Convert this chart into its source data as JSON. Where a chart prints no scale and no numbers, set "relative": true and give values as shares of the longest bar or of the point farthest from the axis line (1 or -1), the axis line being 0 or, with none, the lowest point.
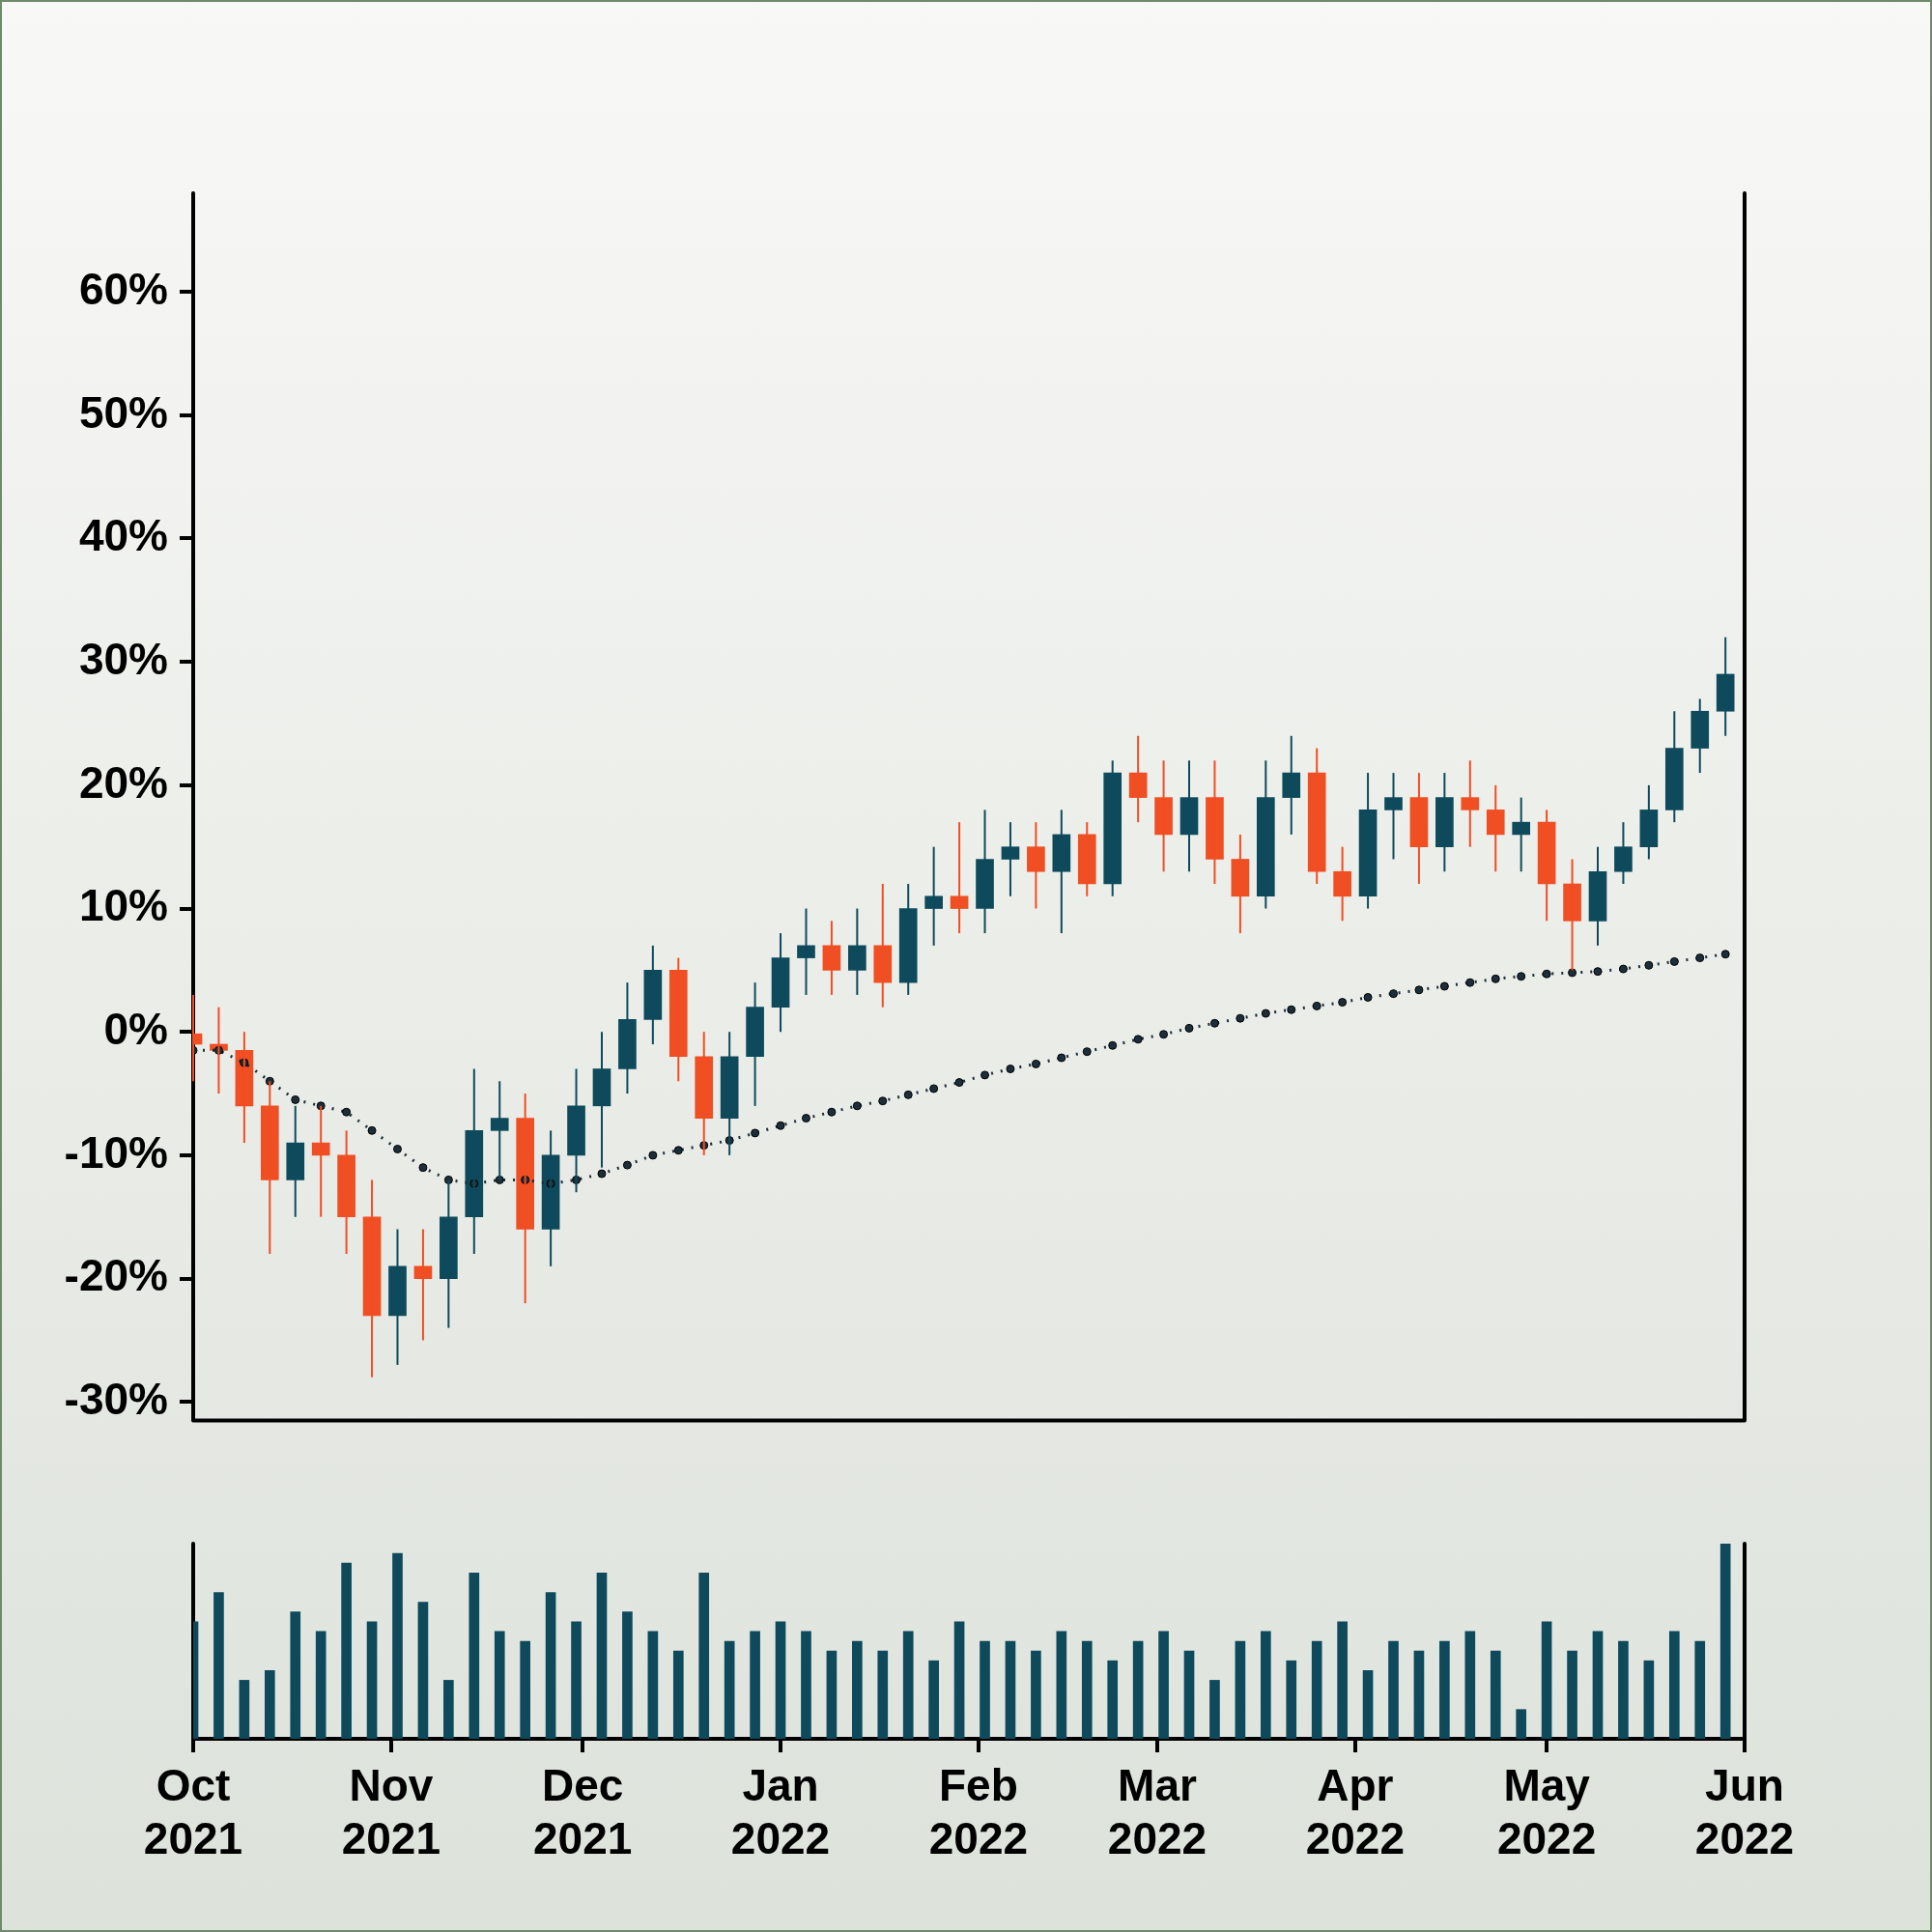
{
  "chart_data": [
    {
      "type": "candlestick",
      "x": [
        "2021-10-01",
        "2021-10-05",
        "2021-10-09",
        "2021-10-13",
        "2021-10-17",
        "2021-10-21",
        "2021-10-25",
        "2021-10-29",
        "2021-11-02",
        "2021-11-06",
        "2021-11-10",
        "2021-11-14",
        "2021-11-18",
        "2021-11-22",
        "2021-11-26",
        "2021-11-30",
        "2021-12-04",
        "2021-12-08",
        "2021-12-12",
        "2021-12-16",
        "2021-12-20",
        "2021-12-24",
        "2021-12-28",
        "2022-01-01",
        "2022-01-05",
        "2022-01-09",
        "2022-01-13",
        "2022-01-17",
        "2022-01-21",
        "2022-01-25",
        "2022-01-29",
        "2022-02-02",
        "2022-02-06",
        "2022-02-10",
        "2022-02-14",
        "2022-02-18",
        "2022-02-22",
        "2022-02-26",
        "2022-03-02",
        "2022-03-06",
        "2022-03-10",
        "2022-03-14",
        "2022-03-18",
        "2022-03-22",
        "2022-03-26",
        "2022-03-30",
        "2022-04-03",
        "2022-04-07",
        "2022-04-11",
        "2022-04-15",
        "2022-04-19",
        "2022-04-23",
        "2022-04-27",
        "2022-05-01",
        "2022-05-05",
        "2022-05-09",
        "2022-05-13",
        "2022-05-17",
        "2022-05-21",
        "2022-05-25",
        "2022-05-29"
      ],
      "series": [
        {
          "type": "candlestick",
          "ohlc": [
            [
              0,
              3,
              -4,
              -1
            ],
            [
              -1,
              2,
              -5,
              -1.5
            ],
            [
              -1.5,
              0,
              -9,
              -6
            ],
            [
              -6,
              -4,
              -18,
              -12
            ],
            [
              -12,
              -6,
              -15,
              -9
            ],
            [
              -9,
              -6,
              -15,
              -10
            ],
            [
              -10,
              -8,
              -18,
              -15
            ],
            [
              -15,
              -12,
              -28,
              -23
            ],
            [
              -23,
              -16,
              -27,
              -19
            ],
            [
              -19,
              -16,
              -25,
              -20
            ],
            [
              -20,
              -12,
              -24,
              -15
            ],
            [
              -15,
              -3,
              -18,
              -8
            ],
            [
              -8,
              -4,
              -12,
              -7
            ],
            [
              -7,
              -5,
              -22,
              -16
            ],
            [
              -16,
              -8,
              -19,
              -10
            ],
            [
              -10,
              -3,
              -13,
              -6
            ],
            [
              -6,
              0,
              -11,
              -3
            ],
            [
              -3,
              4,
              -5,
              1
            ],
            [
              1,
              7,
              -1,
              5
            ],
            [
              5,
              6,
              -4,
              -2
            ],
            [
              -2,
              0,
              -10,
              -7
            ],
            [
              -7,
              0,
              -10,
              -2
            ],
            [
              -2,
              4,
              -6,
              2
            ],
            [
              2,
              8,
              0,
              6
            ],
            [
              6,
              10,
              3,
              7
            ],
            [
              7,
              9,
              3,
              5
            ],
            [
              5,
              10,
              3,
              7
            ],
            [
              7,
              12,
              2,
              4
            ],
            [
              4,
              12,
              3,
              10
            ],
            [
              10,
              15,
              7,
              11
            ],
            [
              11,
              17,
              8,
              10
            ],
            [
              10,
              18,
              8,
              14
            ],
            [
              14,
              17,
              11,
              15
            ],
            [
              15,
              17,
              10,
              13
            ],
            [
              13,
              18,
              8,
              16
            ],
            [
              16,
              17,
              11,
              12
            ],
            [
              12,
              22,
              11,
              21
            ],
            [
              21,
              24,
              17,
              19
            ],
            [
              19,
              22,
              13,
              16
            ],
            [
              16,
              22,
              13,
              19
            ],
            [
              19,
              22,
              12,
              14
            ],
            [
              14,
              16,
              8,
              11
            ],
            [
              11,
              22,
              10,
              19
            ],
            [
              19,
              24,
              16,
              21
            ],
            [
              21,
              23,
              12,
              13
            ],
            [
              13,
              15,
              9,
              11
            ],
            [
              11,
              21,
              10,
              18
            ],
            [
              18,
              21,
              14,
              19
            ],
            [
              19,
              21,
              12,
              15
            ],
            [
              15,
              21,
              13,
              19
            ],
            [
              19,
              22,
              15,
              18
            ],
            [
              18,
              20,
              13,
              16
            ],
            [
              16,
              19,
              13,
              17
            ],
            [
              17,
              18,
              9,
              12
            ],
            [
              12,
              14,
              5,
              9
            ],
            [
              9,
              15,
              7,
              13
            ],
            [
              13,
              17,
              12,
              15
            ],
            [
              15,
              20,
              14,
              18
            ],
            [
              18,
              26,
              17,
              23
            ],
            [
              23,
              27,
              21,
              26
            ],
            [
              26,
              32,
              24,
              29
            ]
          ],
          "colors": [
            "#f04e23",
            "#f04e23",
            "#f04e23",
            "#f04e23",
            "#0e4a5c",
            "#f04e23",
            "#f04e23",
            "#f04e23",
            "#0e4a5c",
            "#f04e23",
            "#0e4a5c",
            "#0e4a5c",
            "#0e4a5c",
            "#f04e23",
            "#0e4a5c",
            "#0e4a5c",
            "#0e4a5c",
            "#0e4a5c",
            "#0e4a5c",
            "#f04e23",
            "#f04e23",
            "#0e4a5c",
            "#0e4a5c",
            "#0e4a5c",
            "#0e4a5c",
            "#f04e23",
            "#0e4a5c",
            "#f04e23",
            "#0e4a5c",
            "#0e4a5c",
            "#f04e23",
            "#0e4a5c",
            "#0e4a5c",
            "#f04e23",
            "#0e4a5c",
            "#f04e23",
            "#0e4a5c",
            "#f04e23",
            "#f04e23",
            "#0e4a5c",
            "#f04e23",
            "#f04e23",
            "#0e4a5c",
            "#0e4a5c",
            "#f04e23",
            "#f04e23",
            "#0e4a5c",
            "#0e4a5c",
            "#f04e23",
            "#0e4a5c",
            "#f04e23",
            "#f04e23",
            "#0e4a5c",
            "#f04e23",
            "#f04e23",
            "#0e4a5c",
            "#0e4a5c",
            "#0e4a5c",
            "#0e4a5c",
            "#0e4a5c",
            "#0e4a5c"
          ]
        },
        {
          "type": "line",
          "color": "#1c2e3a",
          "marker": "circle",
          "line_style": "dotted",
          "values": [
            -1.5,
            -1.5,
            -2.5,
            -4,
            -5.5,
            -6,
            -6.5,
            -8,
            -9.5,
            -11,
            -12,
            -12.3,
            -12,
            -12,
            -12.3,
            -12,
            -11.5,
            -10.8,
            -10,
            -9.6,
            -9.2,
            -8.8,
            -8.2,
            -7.6,
            -7,
            -6.5,
            -6,
            -5.6,
            -5.1,
            -4.6,
            -4.1,
            -3.5,
            -3,
            -2.6,
            -2.1,
            -1.6,
            -1.1,
            -0.6,
            -0.2,
            0.3,
            0.7,
            1.1,
            1.5,
            1.8,
            2.1,
            2.4,
            2.8,
            3.1,
            3.4,
            3.7,
            4,
            4.3,
            4.5,
            4.7,
            4.8,
            4.9,
            5.1,
            5.4,
            5.7,
            6,
            6.3
          ]
        }
      ],
      "xlim": [
        "2021-10-01",
        "2022-06-01"
      ],
      "ylim": [
        -31.5,
        68
      ],
      "yticks": [
        {
          "value": -30,
          "label": "-30%"
        },
        {
          "value": -20,
          "label": "-20%"
        },
        {
          "value": -10,
          "label": "-10%"
        },
        {
          "value": 0,
          "label": "0%"
        },
        {
          "value": 10,
          "label": "10%"
        },
        {
          "value": 20,
          "label": "20%"
        },
        {
          "value": 30,
          "label": "30%"
        },
        {
          "value": 40,
          "label": "40%"
        },
        {
          "value": 50,
          "label": "50%"
        },
        {
          "value": 60,
          "label": "60%"
        }
      ],
      "tick_labels": "y"
    },
    {
      "type": "bar",
      "relative": true,
      "color": "#0e4a5c",
      "x": [
        "2021-10-01",
        "2021-10-05",
        "2021-10-09",
        "2021-10-13",
        "2021-10-17",
        "2021-10-21",
        "2021-10-25",
        "2021-10-29",
        "2021-11-02",
        "2021-11-06",
        "2021-11-10",
        "2021-11-14",
        "2021-11-18",
        "2021-11-22",
        "2021-11-26",
        "2021-11-30",
        "2021-12-04",
        "2021-12-08",
        "2021-12-12",
        "2021-12-16",
        "2021-12-20",
        "2021-12-24",
        "2021-12-28",
        "2022-01-01",
        "2022-01-05",
        "2022-01-09",
        "2022-01-13",
        "2022-01-17",
        "2022-01-21",
        "2022-01-25",
        "2022-01-29",
        "2022-02-02",
        "2022-02-06",
        "2022-02-10",
        "2022-02-14",
        "2022-02-18",
        "2022-02-22",
        "2022-02-26",
        "2022-03-02",
        "2022-03-06",
        "2022-03-10",
        "2022-03-14",
        "2022-03-18",
        "2022-03-22",
        "2022-03-26",
        "2022-03-30",
        "2022-04-03",
        "2022-04-07",
        "2022-04-11",
        "2022-04-15",
        "2022-04-19",
        "2022-04-23",
        "2022-04-27",
        "2022-05-01",
        "2022-05-05",
        "2022-05-09",
        "2022-05-13",
        "2022-05-17",
        "2022-05-21",
        "2022-05-25",
        "2022-05-29"
      ],
      "values": [
        0.6,
        0.75,
        0.3,
        0.35,
        0.65,
        0.55,
        0.9,
        0.6,
        0.95,
        0.7,
        0.3,
        0.85,
        0.55,
        0.5,
        0.75,
        0.6,
        0.85,
        0.65,
        0.55,
        0.45,
        0.85,
        0.5,
        0.55,
        0.6,
        0.55,
        0.45,
        0.5,
        0.45,
        0.55,
        0.4,
        0.6,
        0.5,
        0.5,
        0.45,
        0.55,
        0.5,
        0.4,
        0.5,
        0.55,
        0.45,
        0.3,
        0.5,
        0.55,
        0.4,
        0.5,
        0.6,
        0.35,
        0.5,
        0.45,
        0.5,
        0.55,
        0.45,
        0.15,
        0.6,
        0.45,
        0.55,
        0.5,
        0.4,
        0.55,
        0.5,
        1
      ],
      "xlim": [
        "2021-10-01",
        "2022-06-01"
      ],
      "xticks": [
        {
          "value": "2021-10-01",
          "label": "Oct 2021"
        },
        {
          "value": "2021-11-01",
          "label": "Nov 2021"
        },
        {
          "value": "2021-12-01",
          "label": "Dec 2021"
        },
        {
          "value": "2022-01-01",
          "label": "Jan 2022"
        },
        {
          "value": "2022-02-01",
          "label": "Feb 2022"
        },
        {
          "value": "2022-03-01",
          "label": "Mar 2022"
        },
        {
          "value": "2022-04-01",
          "label": "Apr 2022"
        },
        {
          "value": "2022-05-01",
          "label": "May 2022"
        },
        {
          "value": "2022-06-01",
          "label": "Jun 2022"
        }
      ],
      "tick_labels": "x"
    }
  ]
}
